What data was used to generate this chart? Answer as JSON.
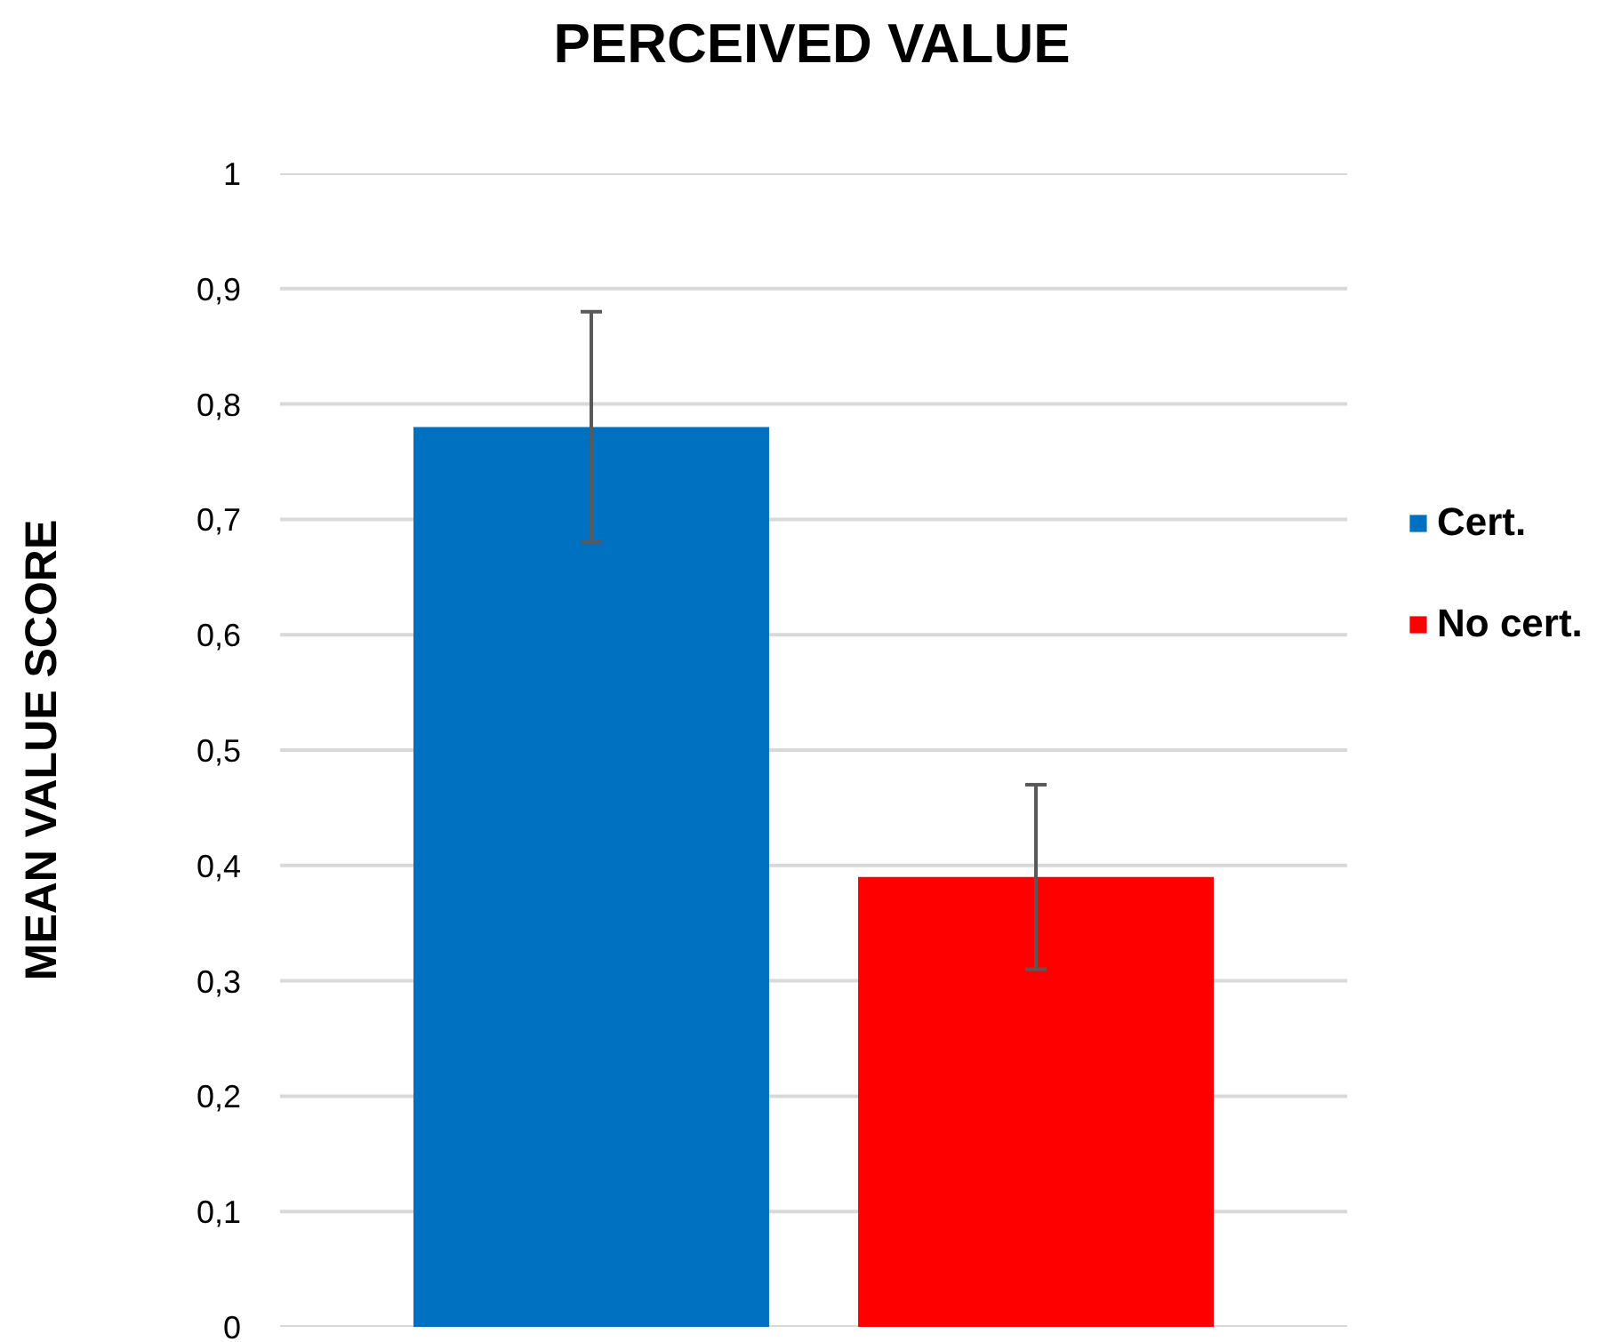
{
  "chart_data": {
    "type": "bar",
    "title": "PERCEIVED VALUE",
    "ylabel": "MEAN VALUE SCORE",
    "categories": [
      null
    ],
    "series": [
      {
        "name": "Cert.",
        "color": "#0070c0",
        "values": [
          0.78
        ],
        "errors": [
          0.1
        ]
      },
      {
        "name": "No cert.",
        "color": "#ff0000",
        "values": [
          0.39
        ],
        "errors": [
          0.08
        ]
      }
    ],
    "ylim": [
      0,
      1
    ],
    "yticks": [
      0,
      {
        "value": 0.1,
        "label": "0,1"
      },
      {
        "value": 0.2,
        "label": "0,2"
      },
      {
        "value": 0.3,
        "label": "0,3"
      },
      {
        "value": 0.4,
        "label": "0,4"
      },
      {
        "value": 0.5,
        "label": "0,5"
      },
      {
        "value": 0.6,
        "label": "0,6"
      },
      {
        "value": 0.7,
        "label": "0,7"
      },
      {
        "value": 0.8,
        "label": "0,8"
      },
      {
        "value": 0.9,
        "label": "0,9"
      },
      1
    ],
    "grid": "y",
    "legend": "right",
    "tick_labels": "y"
  }
}
